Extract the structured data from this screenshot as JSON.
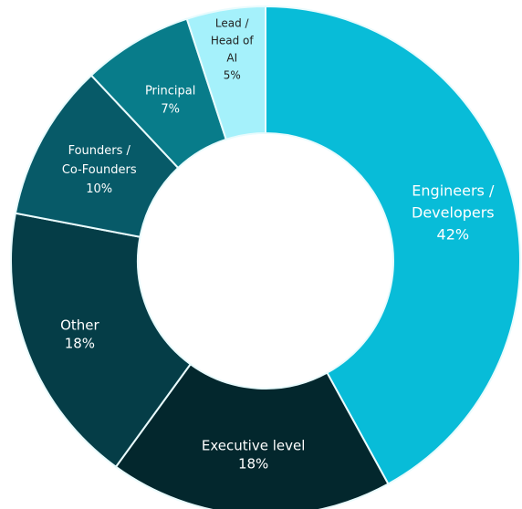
{
  "chart_data": {
    "type": "pie",
    "variant": "donut",
    "slices": [
      {
        "label_lines": [
          "Engineers /",
          "Developers"
        ],
        "value_label": "42%",
        "value": 42,
        "color": "#08bcd8",
        "text_color": "#ffffff"
      },
      {
        "label_lines": [
          "Executive level"
        ],
        "value_label": "18%",
        "value": 18,
        "color": "#03272d",
        "text_color": "#ffffff"
      },
      {
        "label_lines": [
          "Other"
        ],
        "value_label": "18%",
        "value": 18,
        "color": "#053d47",
        "text_color": "#ffffff"
      },
      {
        "label_lines": [
          "Founders /",
          "Co-Founders"
        ],
        "value_label": "10%",
        "value": 10,
        "color": "#075a68",
        "text_color": "#ffffff"
      },
      {
        "label_lines": [
          "Principal"
        ],
        "value_label": "7%",
        "value": 7,
        "color": "#087c8a",
        "text_color": "#ffffff"
      },
      {
        "label_lines": [
          "Lead /",
          "Head of",
          "AI"
        ],
        "value_label": "5%",
        "value": 5,
        "color": "#a5f1fb",
        "text_color": "#222222"
      }
    ]
  }
}
